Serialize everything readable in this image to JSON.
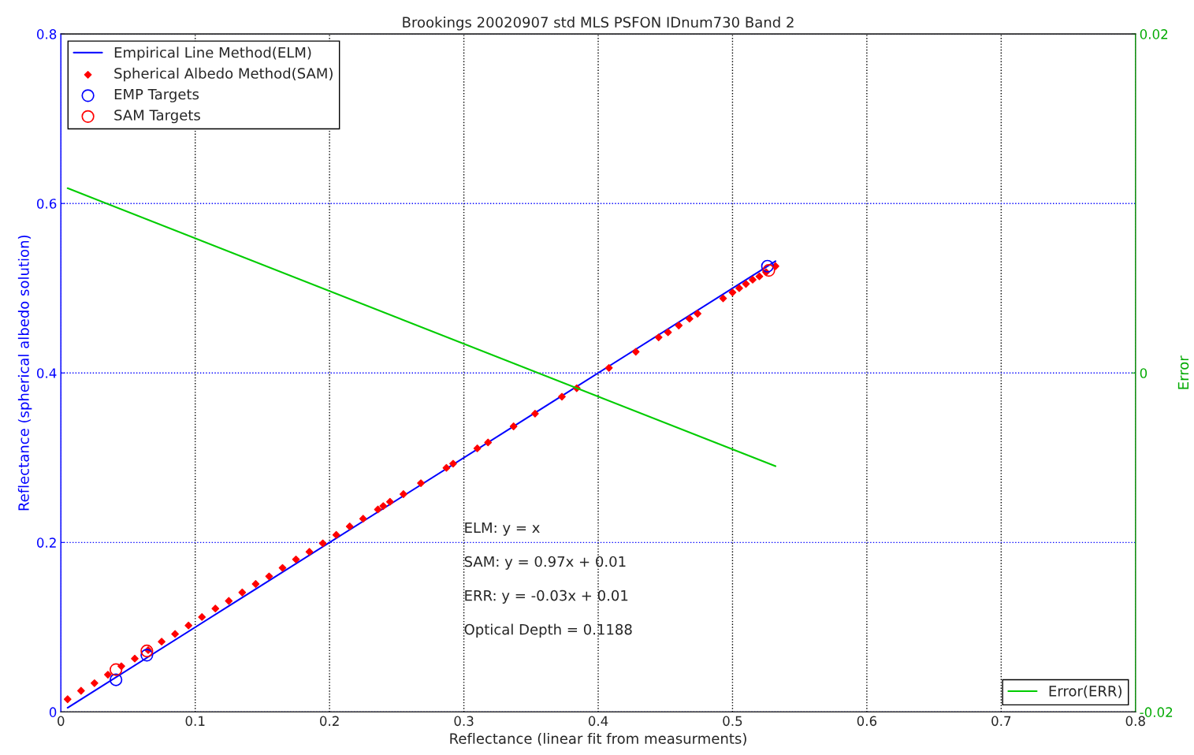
{
  "chart_data": {
    "type": "line",
    "title": "Brookings 20020907 std MLS PSFON IDnum730 Band 2",
    "xlabel": "Reflectance (linear fit from measurments)",
    "ylabel": "Reflectance (spherical albedo solution)",
    "y2label": "Error",
    "xlim": [
      0,
      0.8
    ],
    "xticks": [
      0,
      0.1,
      0.2,
      0.3,
      0.4,
      0.5,
      0.6,
      0.7,
      0.8
    ],
    "ylim": [
      0,
      0.8
    ],
    "yticks": [
      0,
      0.2,
      0.4,
      0.6,
      0.8
    ],
    "y2lim": [
      -0.02,
      0.02
    ],
    "y2ticks": [
      -0.02,
      0,
      0.02
    ],
    "grid": true,
    "legend": "top left",
    "series": [
      {
        "name": "Empirical Line Method(ELM)",
        "color": "#0000ff",
        "marker": "none",
        "x": [
          0.005,
          0.532
        ],
        "values": [
          0.005,
          0.532
        ]
      },
      {
        "name": "Spherical Albedo Method(SAM)",
        "type": "scatter",
        "color": "#ff0000",
        "marker": "diamond",
        "x": [
          0.005,
          0.015,
          0.025,
          0.035,
          0.045,
          0.055,
          0.065,
          0.075,
          0.085,
          0.095,
          0.105,
          0.115,
          0.125,
          0.135,
          0.145,
          0.155,
          0.165,
          0.175,
          0.185,
          0.195,
          0.205,
          0.215,
          0.225,
          0.236,
          0.24,
          0.245,
          0.255,
          0.268,
          0.287,
          0.292,
          0.31,
          0.318,
          0.337,
          0.353,
          0.373,
          0.384,
          0.408,
          0.428,
          0.445,
          0.452,
          0.46,
          0.468,
          0.474,
          0.493,
          0.5,
          0.505,
          0.51,
          0.515,
          0.52,
          0.525,
          0.532
        ],
        "values": [
          0.015,
          0.025,
          0.034,
          0.044,
          0.054,
          0.063,
          0.073,
          0.083,
          0.092,
          0.102,
          0.112,
          0.122,
          0.131,
          0.141,
          0.151,
          0.16,
          0.17,
          0.18,
          0.189,
          0.199,
          0.209,
          0.219,
          0.228,
          0.239,
          0.243,
          0.248,
          0.257,
          0.27,
          0.288,
          0.293,
          0.311,
          0.318,
          0.337,
          0.352,
          0.372,
          0.382,
          0.406,
          0.425,
          0.442,
          0.448,
          0.456,
          0.464,
          0.47,
          0.488,
          0.495,
          0.5,
          0.505,
          0.51,
          0.514,
          0.519,
          0.526
        ]
      },
      {
        "name": "EMP Targets",
        "type": "scatter",
        "color": "#0000ff",
        "marker": "circle",
        "x": [
          0.041,
          0.064,
          0.526
        ],
        "values": [
          0.038,
          0.067,
          0.526
        ]
      },
      {
        "name": "SAM Targets",
        "type": "scatter",
        "color": "#ff0000",
        "marker": "circle",
        "x": [
          0.041,
          0.064,
          0.527
        ],
        "values": [
          0.05,
          0.072,
          0.521
        ]
      },
      {
        "name": "Error(ERR)",
        "axis": "y2",
        "color": "#00cc00",
        "marker": "none",
        "x": [
          0.005,
          0.532
        ],
        "values": [
          0.0109,
          -0.0055
        ]
      }
    ],
    "annotations": [
      "ELM: y = x",
      "SAM: y = 0.97x + 0.01",
      "ERR: y = -0.03x + 0.01",
      "Optical Depth = 0.1188"
    ]
  }
}
